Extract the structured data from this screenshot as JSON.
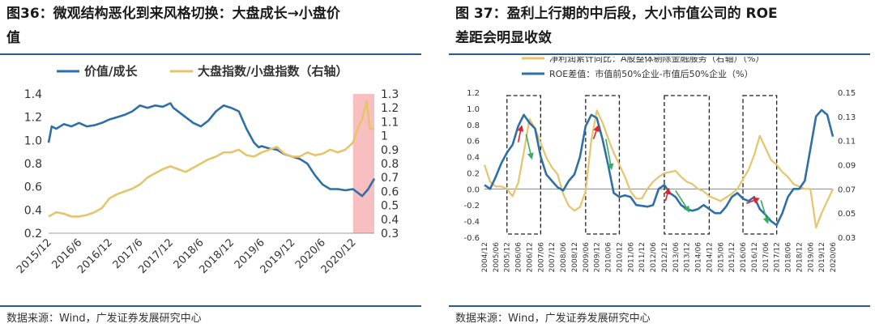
{
  "theme": {
    "rule_color": "#2e5c8a",
    "blue": "#2e6fa7",
    "gold": "#e6c46b",
    "highlight": "#f6b4b4",
    "red": "#e0242b",
    "green": "#3aaa5c"
  },
  "left": {
    "title_line1": "图36：微观结构恶化到来风格切换：大盘成长→小盘价",
    "title_line2": "值",
    "source": "数据来源：Wind，广发证券发展研究中心"
  },
  "right": {
    "title_line1": "图 37：盈利上行期的中后段，大小市值公司的 ROE",
    "title_line2": "差距会明显收敛",
    "source": "数据来源：Wind，广发证券发展研究中心"
  },
  "chart_data": [
    {
      "type": "line",
      "legend": [
        "价值/成长",
        "大盘指数/小盘指数（右轴）"
      ],
      "x_ticks": [
        "2015/12",
        "2016/6",
        "2016/12",
        "2017/6",
        "2017/12",
        "2018/6",
        "2018/12",
        "2019/6",
        "2019/12",
        "2020/6",
        "2020/12"
      ],
      "y_left_ticks": [
        "0.2",
        "0.4",
        "0.6",
        "0.8",
        "1.0",
        "1.2",
        "1.4"
      ],
      "y_right_ticks": [
        "0.3",
        "0.4",
        "0.5",
        "0.6",
        "0.7",
        "0.8",
        "0.9",
        "1",
        "1.1",
        "1.2",
        "1.3"
      ],
      "ylim_left": [
        0.2,
        1.4
      ],
      "ylim_right": [
        0.3,
        1.3
      ],
      "highlight": {
        "from": 10.0,
        "to": 10.7,
        "note": "shaded period 2020/12 onward"
      },
      "series": [
        {
          "name": "价值/成长",
          "axis": "left",
          "color": "#2e6fa7",
          "x": [
            0,
            0.1,
            0.25,
            0.5,
            0.75,
            1.0,
            1.25,
            1.5,
            1.75,
            2.0,
            2.25,
            2.5,
            2.75,
            3.0,
            3.25,
            3.5,
            3.75,
            4.0,
            4.1,
            4.3,
            4.5,
            4.75,
            5.0,
            5.25,
            5.5,
            5.75,
            6.0,
            6.25,
            6.5,
            6.75,
            6.9,
            7.0,
            7.25,
            7.5,
            7.75,
            8.0,
            8.25,
            8.5,
            8.75,
            9.0,
            9.25,
            9.5,
            9.75,
            10.0,
            10.1,
            10.3,
            10.5,
            10.7
          ],
          "values": [
            0.98,
            1.12,
            1.1,
            1.14,
            1.12,
            1.15,
            1.12,
            1.13,
            1.15,
            1.18,
            1.2,
            1.22,
            1.25,
            1.3,
            1.28,
            1.3,
            1.29,
            1.32,
            1.28,
            1.24,
            1.2,
            1.15,
            1.12,
            1.17,
            1.25,
            1.3,
            1.28,
            1.25,
            1.1,
            0.98,
            0.94,
            0.95,
            0.93,
            0.92,
            0.88,
            0.86,
            0.84,
            0.8,
            0.7,
            0.62,
            0.58,
            0.58,
            0.57,
            0.58,
            0.56,
            0.52,
            0.58,
            0.67
          ]
        },
        {
          "name": "大盘指数/小盘指数（右轴）",
          "axis": "right",
          "color": "#e6c46b",
          "x": [
            0,
            0.25,
            0.5,
            0.75,
            1.0,
            1.25,
            1.5,
            1.75,
            2.0,
            2.25,
            2.5,
            2.75,
            3.0,
            3.25,
            3.5,
            3.75,
            4.0,
            4.25,
            4.5,
            4.75,
            5.0,
            5.25,
            5.5,
            5.75,
            6.0,
            6.25,
            6.5,
            6.75,
            7.0,
            7.25,
            7.5,
            7.75,
            8.0,
            8.25,
            8.5,
            8.75,
            9.0,
            9.25,
            9.5,
            9.75,
            10.0,
            10.15,
            10.3,
            10.45,
            10.55,
            10.7
          ],
          "values": [
            0.42,
            0.45,
            0.44,
            0.42,
            0.42,
            0.43,
            0.45,
            0.48,
            0.55,
            0.58,
            0.6,
            0.62,
            0.65,
            0.7,
            0.73,
            0.76,
            0.78,
            0.76,
            0.74,
            0.77,
            0.8,
            0.83,
            0.85,
            0.88,
            0.88,
            0.9,
            0.86,
            0.85,
            0.88,
            0.9,
            0.92,
            0.87,
            0.85,
            0.85,
            0.88,
            0.86,
            0.87,
            0.9,
            0.88,
            0.9,
            0.95,
            1.05,
            1.12,
            1.25,
            1.05,
            1.05
          ]
        }
      ]
    },
    {
      "type": "line",
      "legend": [
        "净利润累计同比：A股整体剔除金融服务（右轴）（%）",
        "ROE差值：市值前50%企业-市值后50%企业（%）"
      ],
      "x_ticks": [
        "2004/12",
        "2005/06",
        "2005/12",
        "2006/06",
        "2006/12",
        "2007/06",
        "2007/12",
        "2008/06",
        "2008/12",
        "2009/06",
        "2009/12",
        "2010/06",
        "2010/12",
        "2011/06",
        "2011/12",
        "2012/06",
        "2012/12",
        "2013/06",
        "2013/12",
        "2014/06",
        "2014/12",
        "2015/06",
        "2015/12",
        "2016/06",
        "2016/12",
        "2017/06",
        "2017/12",
        "2018/06",
        "2018/12",
        "2019/06",
        "2019/12",
        "2020/06"
      ],
      "y_left_ticks": [
        "-0.6",
        "-0.4",
        "-0.2",
        "0.0",
        "0.2",
        "0.4",
        "0.6",
        "0.8",
        "1.0",
        "1.2"
      ],
      "y_right_ticks": [
        "0.03",
        "0.05",
        "0.07",
        "0.09",
        "0.11",
        "0.13",
        "0.15"
      ],
      "ylim_left": [
        -0.6,
        1.2
      ],
      "ylim_right": [
        0.03,
        0.15
      ],
      "boxes": [
        [
          2,
          5
        ],
        [
          9,
          12
        ],
        [
          16,
          20
        ],
        [
          23,
          26
        ]
      ],
      "arrows": [
        {
          "color": "red",
          "from": [
            3.0,
            0.58
          ],
          "to": [
            3.3,
            0.78
          ]
        },
        {
          "color": "green",
          "from": [
            3.7,
            0.68
          ],
          "to": [
            4.2,
            0.38
          ]
        },
        {
          "color": "red",
          "from": [
            9.7,
            0.62
          ],
          "to": [
            10.1,
            0.78
          ]
        },
        {
          "color": "green",
          "from": [
            10.8,
            0.62
          ],
          "to": [
            11.3,
            0.25
          ]
        },
        {
          "color": "red",
          "from": [
            16.1,
            -0.15
          ],
          "to": [
            16.4,
            0.0
          ]
        },
        {
          "color": "green",
          "from": [
            17.0,
            -0.02
          ],
          "to": [
            18.2,
            -0.28
          ]
        },
        {
          "color": "red",
          "from": [
            23.3,
            -0.18
          ],
          "to": [
            24.4,
            -0.12
          ]
        },
        {
          "color": "green",
          "from": [
            24.6,
            -0.14
          ],
          "to": [
            25.2,
            -0.42
          ]
        }
      ],
      "series": [
        {
          "name": "净利润累计同比：A股整体剔除金融服务（右轴）（%）",
          "axis": "right",
          "color": "#e6c46b",
          "x": [
            0,
            0.5,
            1,
            1.5,
            2,
            2.5,
            3,
            3.5,
            4,
            4.5,
            5,
            5.5,
            6,
            6.5,
            7,
            7.5,
            8,
            8.5,
            9,
            9.5,
            10,
            10.5,
            11,
            11.5,
            12,
            12.5,
            13,
            13.5,
            14,
            14.5,
            15,
            15.5,
            16,
            16.5,
            17,
            17.5,
            18,
            18.5,
            19,
            19.5,
            20,
            20.5,
            21,
            21.5,
            22,
            22.5,
            23,
            23.5,
            24,
            24.5,
            25,
            25.5,
            26,
            26.5,
            27,
            27.5,
            28,
            28.5,
            29,
            29.5,
            30,
            30.5,
            31
          ],
          "values": [
            0.09,
            0.076,
            0.072,
            0.072,
            0.07,
            0.064,
            0.075,
            0.1,
            0.128,
            0.12,
            0.108,
            0.096,
            0.088,
            0.082,
            0.066,
            0.056,
            0.052,
            0.055,
            0.068,
            0.11,
            0.135,
            0.125,
            0.112,
            0.1,
            0.09,
            0.08,
            0.068,
            0.062,
            0.062,
            0.07,
            0.076,
            0.08,
            0.083,
            0.084,
            0.085,
            0.08,
            0.076,
            0.074,
            0.07,
            0.068,
            0.064,
            0.062,
            0.06,
            0.063,
            0.066,
            0.07,
            0.078,
            0.086,
            0.098,
            0.114,
            0.104,
            0.094,
            0.09,
            0.084,
            0.08,
            0.074,
            0.072,
            0.07,
            0.07,
            0.038,
            0.05,
            0.06,
            0.07
          ]
        },
        {
          "name": "ROE差值：市值前50%企业-市值后50%企业（%）",
          "axis": "left",
          "color": "#2e6fa7",
          "x": [
            0,
            0.5,
            1,
            1.5,
            2,
            2.5,
            3,
            3.5,
            4,
            4.5,
            5,
            5.5,
            6,
            6.5,
            7,
            7.5,
            8,
            8.5,
            9,
            9.5,
            10,
            10.5,
            11,
            11.5,
            12,
            12.5,
            13,
            13.5,
            14,
            14.5,
            15,
            15.5,
            16,
            16.5,
            17,
            17.5,
            18,
            18.5,
            19,
            19.5,
            20,
            20.5,
            21,
            21.5,
            22,
            22.5,
            23,
            23.5,
            24,
            24.5,
            25,
            25.5,
            26,
            26.5,
            27,
            27.5,
            28,
            28.5,
            29,
            29.5,
            30,
            30.5,
            31
          ],
          "values": [
            0.05,
            0.0,
            0.15,
            0.32,
            0.45,
            0.55,
            0.78,
            0.92,
            0.82,
            0.75,
            0.4,
            0.18,
            0.1,
            0.02,
            -0.02,
            0.1,
            0.18,
            0.4,
            0.78,
            0.92,
            0.88,
            0.62,
            0.3,
            -0.05,
            -0.1,
            -0.08,
            -0.1,
            -0.2,
            -0.21,
            -0.22,
            -0.2,
            0.0,
            0.05,
            -0.05,
            -0.1,
            -0.2,
            -0.25,
            -0.27,
            -0.25,
            -0.2,
            -0.25,
            -0.3,
            -0.3,
            -0.22,
            -0.1,
            -0.05,
            -0.12,
            -0.15,
            -0.1,
            -0.25,
            -0.32,
            -0.4,
            -0.45,
            -0.3,
            -0.1,
            0.0,
            0.0,
            0.1,
            0.5,
            0.9,
            0.98,
            0.92,
            0.65
          ]
        }
      ]
    }
  ]
}
